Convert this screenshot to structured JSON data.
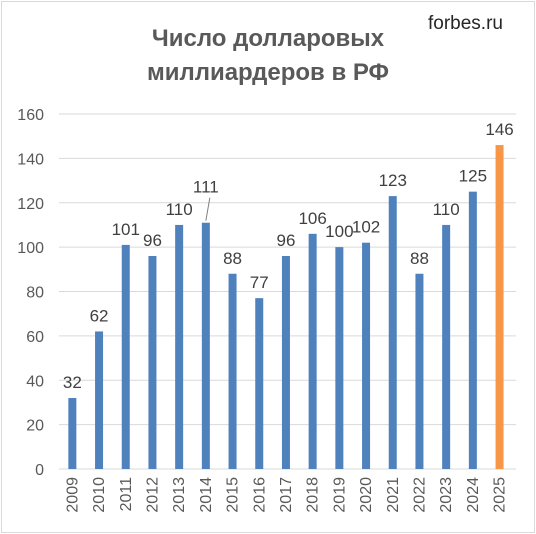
{
  "header": {
    "title_line1": "Число долларовых",
    "title_line2": "миллиардеров в РФ",
    "source": "forbes.ru"
  },
  "colors": {
    "bar": "#4f81bd",
    "highlight": "#f79646",
    "grid": "#d9d9d9",
    "text": "#595959"
  },
  "chart_data": {
    "type": "bar",
    "title": "Число долларовых миллиардеров в РФ",
    "categories": [
      "2009",
      "2010",
      "2011",
      "2012",
      "2013",
      "2014",
      "2015",
      "2016",
      "2017",
      "2018",
      "2019",
      "2020",
      "2021",
      "2022",
      "2023",
      "2024",
      "2025"
    ],
    "values": [
      32,
      62,
      101,
      96,
      110,
      111,
      88,
      77,
      96,
      106,
      100,
      102,
      123,
      88,
      110,
      125,
      146
    ],
    "highlight_category": "2025",
    "ylim": [
      0,
      160
    ],
    "yticks": [
      0,
      20,
      40,
      60,
      80,
      100,
      120,
      140,
      160
    ],
    "grid": true,
    "data_labels": true
  }
}
